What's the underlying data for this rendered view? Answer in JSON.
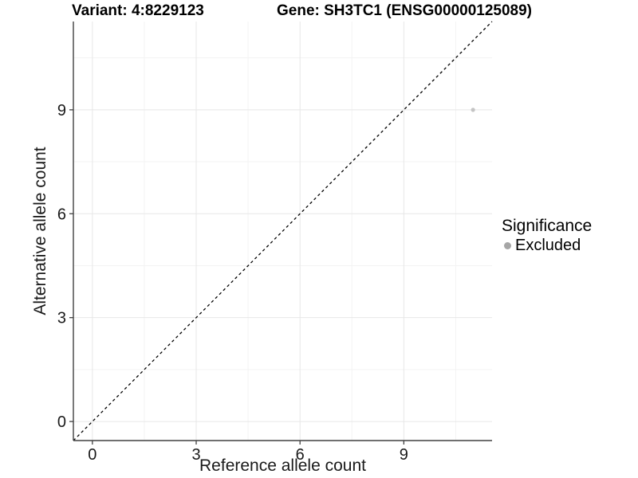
{
  "chart_data": {
    "type": "scatter",
    "title_left": "Variant: 4:8229123",
    "title_right": "Gene: SH3TC1 (ENSG00000125089)",
    "xlabel": "Reference allele count",
    "ylabel": "Alternative allele count",
    "xlim": [
      -0.55,
      11.55
    ],
    "ylim": [
      -0.55,
      11.55
    ],
    "xticks": [
      0,
      3,
      6,
      9
    ],
    "yticks": [
      0,
      3,
      6,
      9
    ],
    "minor_xticks": [
      1.5,
      4.5,
      7.5,
      10.5
    ],
    "minor_yticks": [
      1.5,
      4.5,
      7.5,
      10.5
    ],
    "grid": {
      "major_color": "#e7e7e7",
      "minor_color": "#f3f3f3",
      "on": true
    },
    "axis_color": "#404040",
    "tick_label_color": "#1a1a1a",
    "identity_line": {
      "style": "dashed",
      "color": "#000000",
      "from": [
        -0.55,
        -0.55
      ],
      "to": [
        11.55,
        11.55
      ]
    },
    "series": [
      {
        "name": "Excluded",
        "color": "#c4c4c4",
        "points": [
          [
            11,
            9
          ]
        ]
      }
    ],
    "legend": {
      "title": "Significance",
      "position": "right",
      "entries": [
        {
          "label": "Excluded",
          "color": "#a6a6a6"
        }
      ]
    }
  }
}
